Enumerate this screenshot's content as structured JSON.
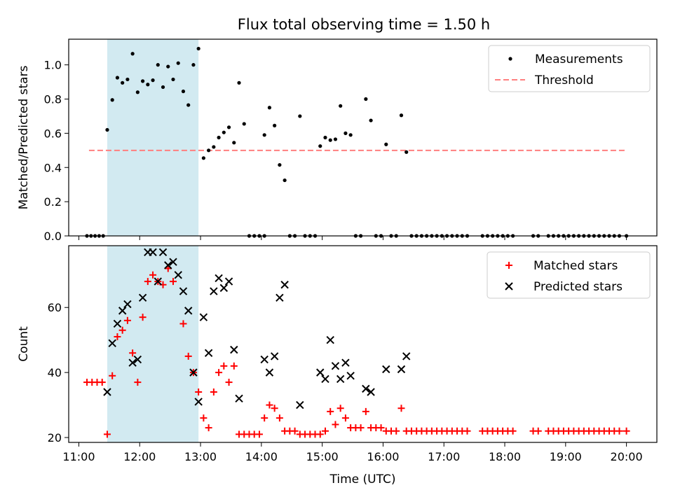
{
  "title": "Flux total observing time = 1.50 h",
  "colors": {
    "shade": "#add8e6",
    "threshold": "#ff7f7f",
    "matched": "#ff0000",
    "predicted": "#000000",
    "measurement": "#000000"
  },
  "chart_data": [
    {
      "type": "scatter",
      "ylabel": "Matched/Predicted stars",
      "xlim": [
        "10:50",
        "20:30"
      ],
      "ylim": [
        0,
        1.15
      ],
      "yticks": [
        "0.0",
        "0.2",
        "0.4",
        "0.6",
        "0.8",
        "1.0"
      ],
      "shaded_region": [
        "11:28",
        "12:58"
      ],
      "legend": {
        "position": "top-right",
        "entries": [
          "Measurements",
          "Threshold"
        ]
      },
      "threshold": {
        "name": "Threshold",
        "value": 0.5,
        "x_range": [
          "11:10",
          "20:00"
        ]
      },
      "series": [
        {
          "name": "Measurements",
          "points": [
            [
              "11:08",
              0
            ],
            [
              "11:12",
              0
            ],
            [
              "11:16",
              0
            ],
            [
              "11:20",
              0
            ],
            [
              "11:24",
              0
            ],
            [
              "11:28",
              0.62
            ],
            [
              "11:33",
              0.795
            ],
            [
              "11:38",
              0.925
            ],
            [
              "11:43",
              0.895
            ],
            [
              "11:48",
              0.915
            ],
            [
              "11:53",
              1.065
            ],
            [
              "11:58",
              0.84
            ],
            [
              "12:03",
              0.905
            ],
            [
              "12:08",
              0.885
            ],
            [
              "12:13",
              0.91
            ],
            [
              "12:18",
              1.0
            ],
            [
              "12:23",
              0.87
            ],
            [
              "12:28",
              0.99
            ],
            [
              "12:33",
              0.915
            ],
            [
              "12:38",
              1.01
            ],
            [
              "12:43",
              0.845
            ],
            [
              "12:48",
              0.765
            ],
            [
              "12:53",
              1.0
            ],
            [
              "12:58",
              1.095
            ],
            [
              "13:03",
              0.455
            ],
            [
              "13:08",
              0.5
            ],
            [
              "13:13",
              0.52
            ],
            [
              "13:18",
              0.575
            ],
            [
              "13:23",
              0.605
            ],
            [
              "13:28",
              0.635
            ],
            [
              "13:33",
              0.545
            ],
            [
              "13:38",
              0.895
            ],
            [
              "13:43",
              0.655
            ],
            [
              "13:48",
              0
            ],
            [
              "13:53",
              0
            ],
            [
              "13:58",
              0
            ],
            [
              "14:03",
              0
            ],
            [
              "14:03",
              0.59
            ],
            [
              "14:08",
              0.75
            ],
            [
              "14:13",
              0.645
            ],
            [
              "14:18",
              0.415
            ],
            [
              "14:23",
              0.325
            ],
            [
              "14:28",
              0
            ],
            [
              "14:33",
              0
            ],
            [
              "14:38",
              0.7
            ],
            [
              "14:43",
              0
            ],
            [
              "14:48",
              0
            ],
            [
              "14:53",
              0
            ],
            [
              "14:58",
              0.525
            ],
            [
              "15:03",
              0.575
            ],
            [
              "15:08",
              0.56
            ],
            [
              "15:13",
              0.565
            ],
            [
              "15:18",
              0.76
            ],
            [
              "15:23",
              0.6
            ],
            [
              "15:28",
              0.59
            ],
            [
              "15:33",
              0
            ],
            [
              "15:38",
              0
            ],
            [
              "15:43",
              0.8
            ],
            [
              "15:48",
              0.675
            ],
            [
              "15:53",
              0
            ],
            [
              "15:58",
              0
            ],
            [
              "16:03",
              0.535
            ],
            [
              "16:08",
              0
            ],
            [
              "16:13",
              0
            ],
            [
              "16:18",
              0.705
            ],
            [
              "16:23",
              0.49
            ],
            [
              "16:28",
              0
            ],
            [
              "16:33",
              0
            ],
            [
              "16:38",
              0
            ],
            [
              "16:43",
              0
            ],
            [
              "16:48",
              0
            ],
            [
              "16:53",
              0
            ],
            [
              "16:58",
              0
            ],
            [
              "17:03",
              0
            ],
            [
              "17:08",
              0
            ],
            [
              "17:13",
              0
            ],
            [
              "17:18",
              0
            ],
            [
              "17:23",
              0
            ],
            [
              "17:38",
              0
            ],
            [
              "17:43",
              0
            ],
            [
              "17:48",
              0
            ],
            [
              "17:53",
              0
            ],
            [
              "17:58",
              0
            ],
            [
              "18:03",
              0
            ],
            [
              "18:08",
              0
            ],
            [
              "18:28",
              0
            ],
            [
              "18:33",
              0
            ],
            [
              "18:43",
              0
            ],
            [
              "18:48",
              0
            ],
            [
              "18:53",
              0
            ],
            [
              "18:58",
              0
            ],
            [
              "19:03",
              0
            ],
            [
              "19:08",
              0
            ],
            [
              "19:13",
              0
            ],
            [
              "19:18",
              0
            ],
            [
              "19:23",
              0
            ],
            [
              "19:28",
              0
            ],
            [
              "19:33",
              0
            ],
            [
              "19:38",
              0
            ],
            [
              "19:43",
              0
            ],
            [
              "19:48",
              0
            ],
            [
              "19:53",
              0
            ],
            [
              "20:00",
              0
            ]
          ]
        }
      ]
    },
    {
      "type": "scatter",
      "xlabel": "Time (UTC)",
      "ylabel": "Count",
      "xlim": [
        "10:50",
        "20:30"
      ],
      "ylim": [
        18.5,
        79
      ],
      "yticks": [
        "20",
        "40",
        "60"
      ],
      "xticks": [
        "11:00",
        "12:00",
        "13:00",
        "14:00",
        "15:00",
        "16:00",
        "17:00",
        "18:00",
        "19:00",
        "20:00"
      ],
      "shaded_region": [
        "11:28",
        "12:58"
      ],
      "legend": {
        "position": "top-right",
        "entries": [
          "Matched stars",
          "Predicted stars"
        ]
      },
      "series": [
        {
          "name": "Matched stars",
          "marker": "plus",
          "points": [
            [
              "11:08",
              37
            ],
            [
              "11:13",
              37
            ],
            [
              "11:18",
              37
            ],
            [
              "11:23",
              37
            ],
            [
              "11:28",
              21
            ],
            [
              "11:33",
              39
            ],
            [
              "11:38",
              51
            ],
            [
              "11:43",
              53
            ],
            [
              "11:48",
              56
            ],
            [
              "11:53",
              46
            ],
            [
              "11:58",
              37
            ],
            [
              "12:03",
              57
            ],
            [
              "12:08",
              68
            ],
            [
              "12:13",
              70
            ],
            [
              "12:18",
              68
            ],
            [
              "12:23",
              67
            ],
            [
              "12:28",
              72
            ],
            [
              "12:33",
              68
            ],
            [
              "12:43",
              55
            ],
            [
              "12:48",
              45
            ],
            [
              "12:53",
              40
            ],
            [
              "12:58",
              34
            ],
            [
              "13:03",
              26
            ],
            [
              "13:08",
              23
            ],
            [
              "13:13",
              34
            ],
            [
              "13:18",
              40
            ],
            [
              "13:23",
              42
            ],
            [
              "13:28",
              37
            ],
            [
              "13:33",
              42
            ],
            [
              "13:38",
              21
            ],
            [
              "13:43",
              21
            ],
            [
              "13:48",
              21
            ],
            [
              "13:53",
              21
            ],
            [
              "13:58",
              21
            ],
            [
              "14:03",
              26
            ],
            [
              "14:08",
              30
            ],
            [
              "14:13",
              29
            ],
            [
              "14:18",
              26
            ],
            [
              "14:23",
              22
            ],
            [
              "14:28",
              22
            ],
            [
              "14:33",
              22
            ],
            [
              "14:38",
              21
            ],
            [
              "14:43",
              21
            ],
            [
              "14:48",
              21
            ],
            [
              "14:53",
              21
            ],
            [
              "14:58",
              21
            ],
            [
              "15:03",
              22
            ],
            [
              "15:08",
              28
            ],
            [
              "15:13",
              24
            ],
            [
              "15:18",
              29
            ],
            [
              "15:23",
              26
            ],
            [
              "15:28",
              23
            ],
            [
              "15:33",
              23
            ],
            [
              "15:38",
              23
            ],
            [
              "15:43",
              28
            ],
            [
              "15:48",
              23
            ],
            [
              "15:53",
              23
            ],
            [
              "15:58",
              23
            ],
            [
              "16:03",
              22
            ],
            [
              "16:08",
              22
            ],
            [
              "16:13",
              22
            ],
            [
              "16:18",
              29
            ],
            [
              "16:23",
              22
            ],
            [
              "16:28",
              22
            ],
            [
              "16:33",
              22
            ],
            [
              "16:38",
              22
            ],
            [
              "16:43",
              22
            ],
            [
              "16:48",
              22
            ],
            [
              "16:53",
              22
            ],
            [
              "16:58",
              22
            ],
            [
              "17:03",
              22
            ],
            [
              "17:08",
              22
            ],
            [
              "17:13",
              22
            ],
            [
              "17:18",
              22
            ],
            [
              "17:23",
              22
            ],
            [
              "17:38",
              22
            ],
            [
              "17:43",
              22
            ],
            [
              "17:48",
              22
            ],
            [
              "17:53",
              22
            ],
            [
              "17:58",
              22
            ],
            [
              "18:03",
              22
            ],
            [
              "18:08",
              22
            ],
            [
              "18:28",
              22
            ],
            [
              "18:33",
              22
            ],
            [
              "18:43",
              22
            ],
            [
              "18:48",
              22
            ],
            [
              "18:53",
              22
            ],
            [
              "18:58",
              22
            ],
            [
              "19:03",
              22
            ],
            [
              "19:08",
              22
            ],
            [
              "19:13",
              22
            ],
            [
              "19:18",
              22
            ],
            [
              "19:23",
              22
            ],
            [
              "19:28",
              22
            ],
            [
              "19:33",
              22
            ],
            [
              "19:38",
              22
            ],
            [
              "19:43",
              22
            ],
            [
              "19:48",
              22
            ],
            [
              "19:53",
              22
            ],
            [
              "20:00",
              22
            ]
          ]
        },
        {
          "name": "Predicted stars",
          "marker": "x",
          "points": [
            [
              "11:28",
              34
            ],
            [
              "11:33",
              49
            ],
            [
              "11:38",
              55
            ],
            [
              "11:43",
              59
            ],
            [
              "11:48",
              61
            ],
            [
              "11:53",
              43
            ],
            [
              "11:58",
              44
            ],
            [
              "12:03",
              63
            ],
            [
              "12:08",
              77
            ],
            [
              "12:13",
              77
            ],
            [
              "12:18",
              68
            ],
            [
              "12:23",
              77
            ],
            [
              "12:28",
              73
            ],
            [
              "12:33",
              74
            ],
            [
              "12:38",
              70
            ],
            [
              "12:43",
              65
            ],
            [
              "12:48",
              59
            ],
            [
              "12:53",
              40
            ],
            [
              "12:58",
              31
            ],
            [
              "13:03",
              57
            ],
            [
              "13:08",
              46
            ],
            [
              "13:13",
              65
            ],
            [
              "13:18",
              69
            ],
            [
              "13:23",
              66
            ],
            [
              "13:28",
              68
            ],
            [
              "13:33",
              47
            ],
            [
              "13:38",
              32
            ],
            [
              "14:03",
              44
            ],
            [
              "14:08",
              40
            ],
            [
              "14:13",
              45
            ],
            [
              "14:18",
              63
            ],
            [
              "14:23",
              67
            ],
            [
              "14:38",
              30
            ],
            [
              "14:58",
              40
            ],
            [
              "15:03",
              38
            ],
            [
              "15:08",
              50
            ],
            [
              "15:13",
              42
            ],
            [
              "15:18",
              38
            ],
            [
              "15:23",
              43
            ],
            [
              "15:28",
              39
            ],
            [
              "15:43",
              35
            ],
            [
              "15:48",
              34
            ],
            [
              "16:03",
              41
            ],
            [
              "16:18",
              41
            ],
            [
              "16:23",
              45
            ]
          ]
        }
      ]
    }
  ]
}
